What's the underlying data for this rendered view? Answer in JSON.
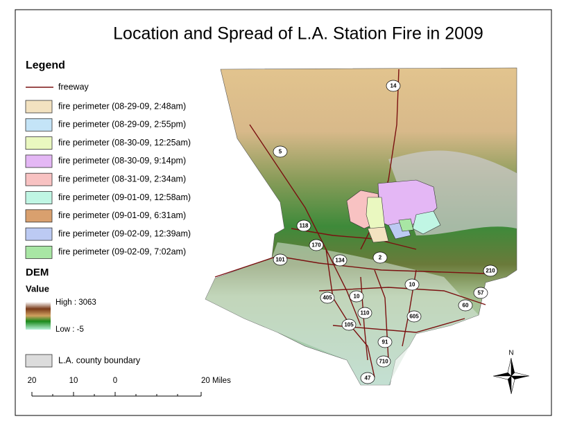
{
  "title": "Location and Spread of L.A. Station Fire in 2009",
  "legend": {
    "heading": "Legend",
    "freeway": "freeway",
    "perimeters": [
      {
        "label": "fire perimeter (08-29-09, 2:48am)",
        "color": "#f3e2c0"
      },
      {
        "label": "fire perimeter (08-29-09, 2:55pm)",
        "color": "#c4e4f7"
      },
      {
        "label": "fire perimeter (08-30-09, 12:25am)",
        "color": "#eaf8c0"
      },
      {
        "label": "fire perimeter (08-30-09, 9:14pm)",
        "color": "#e4b7f5"
      },
      {
        "label": "fire perimeter (08-31-09, 2:34am)",
        "color": "#f8c2c2"
      },
      {
        "label": "fire perimeter (09-01-09, 12:58am)",
        "color": "#c0f6e4"
      },
      {
        "label": "fire perimeter (09-01-09, 6:31am)",
        "color": "#d9a06e"
      },
      {
        "label": "fire perimeter (09-02-09, 12:39am)",
        "color": "#bccaf3"
      },
      {
        "label": "fire perimeter (09-02-09, 7:02am)",
        "color": "#a8e6a4"
      }
    ]
  },
  "dem": {
    "heading": "DEM",
    "value": "Value",
    "high": "High : 3063",
    "low": "Low : -5"
  },
  "boundary": "L.A. county boundary",
  "scale": [
    "20",
    "10",
    "0",
    "20 Miles"
  ],
  "north": "N",
  "freeways": [
    "14",
    "5",
    "118",
    "170",
    "101",
    "134",
    "2",
    "210",
    "10",
    "405",
    "10",
    "110",
    "605",
    "60",
    "57",
    "105",
    "91",
    "710",
    "47"
  ]
}
